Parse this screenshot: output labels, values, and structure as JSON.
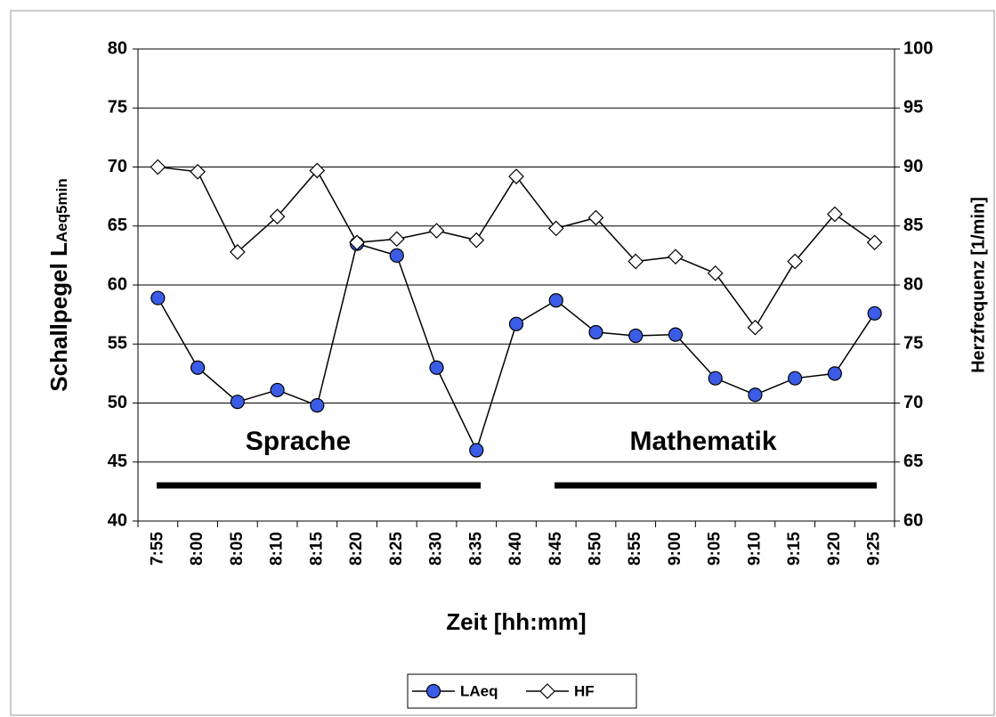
{
  "chart_data": {
    "type": "line",
    "y_label": "Schallpegel L",
    "y_label_sub": "Aeq5min",
    "y2_label": "Herzfrequenz [1/min]",
    "x_label": "Zeit [hh:mm]",
    "annotations": [
      "Sprache",
      "Mathematik"
    ],
    "categories": [
      "7:55",
      "8:00",
      "8:05",
      "8:10",
      "8:15",
      "8:20",
      "8:25",
      "8:30",
      "8:35",
      "8:40",
      "8:45",
      "8:50",
      "8:55",
      "9:00",
      "9:05",
      "9:10",
      "9:15",
      "9:20",
      "9:25"
    ],
    "series": [
      {
        "name": "LAeq",
        "color": "#3b5ce6",
        "marker": "circle",
        "values": [
          58.9,
          53.0,
          50.1,
          51.1,
          49.8,
          63.5,
          62.5,
          53.0,
          46.0,
          56.7,
          58.7,
          56.0,
          55.7,
          55.8,
          52.1,
          50.7,
          52.1,
          52.5,
          57.6
        ]
      },
      {
        "name": "HF",
        "color": "#ffffff",
        "marker": "diamond",
        "axis": "y2",
        "values": [
          90.0,
          89.6,
          82.8,
          85.8,
          89.7,
          83.6,
          83.9,
          84.6,
          83.8,
          89.2,
          84.8,
          85.7,
          82.0,
          82.4,
          81.0,
          76.4,
          82.0,
          86.0,
          83.6
        ]
      }
    ],
    "ylim": [
      40,
      80
    ],
    "yticks": [
      40,
      45,
      50,
      55,
      60,
      65,
      70,
      75,
      80
    ],
    "y2lim": [
      60,
      100
    ],
    "y2ticks": [
      60,
      65,
      70,
      75,
      80,
      85,
      90,
      95,
      100
    ],
    "grid": true,
    "legend": "bottom"
  }
}
